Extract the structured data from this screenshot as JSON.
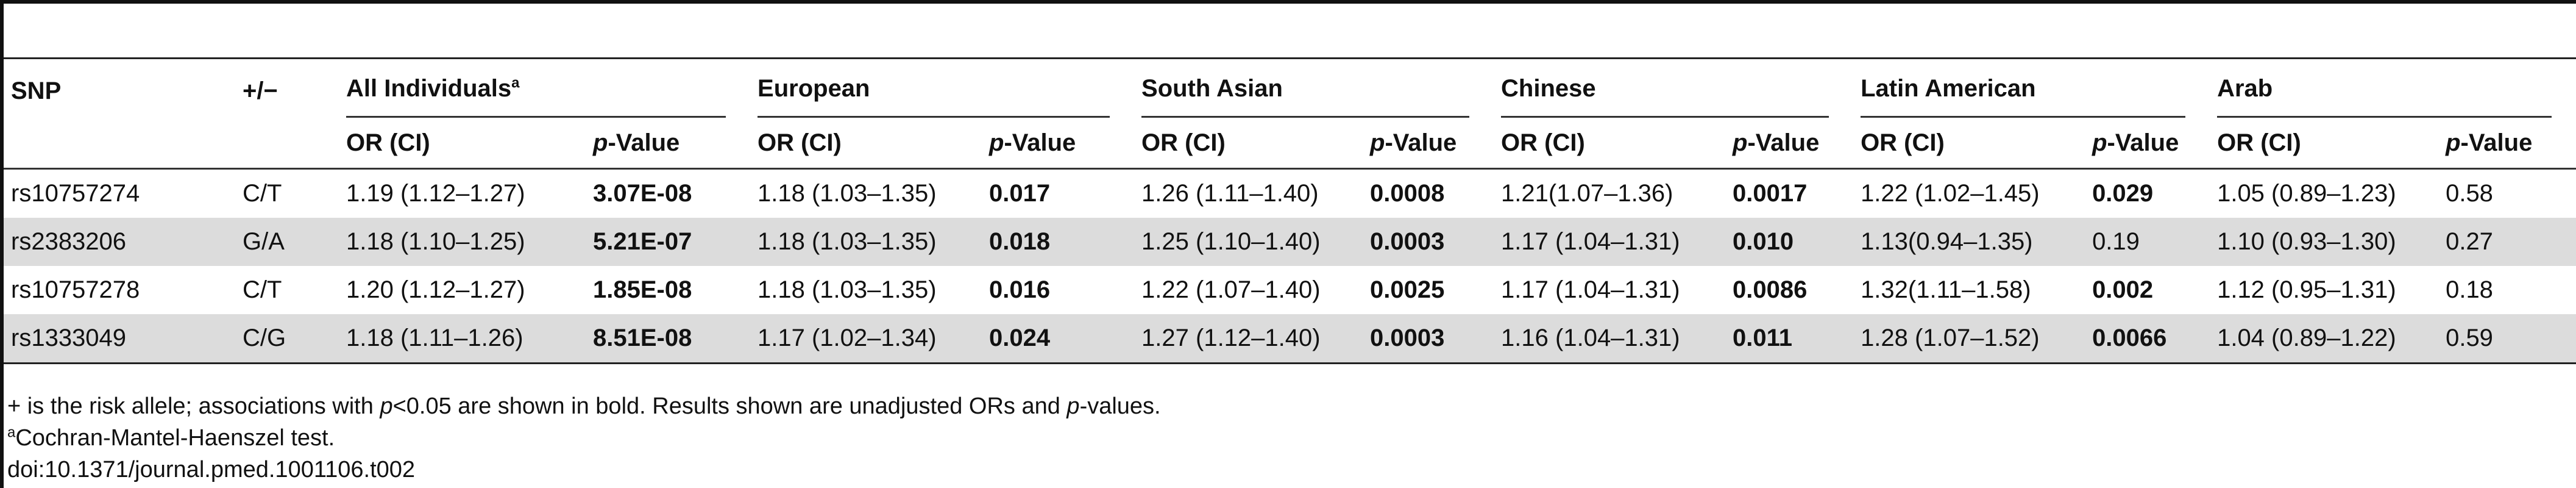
{
  "headers": {
    "snp": "SNP",
    "allele": "+/−",
    "groups": [
      "All Individuals",
      "European",
      "South Asian",
      "Chinese",
      "Latin American",
      "Arab"
    ],
    "all_sup": "a",
    "or_label": "OR (CI)",
    "p_prefix": "p",
    "p_suffix": "-Value"
  },
  "rows": [
    {
      "snp": "rs10757274",
      "allele": "C/T",
      "cells": [
        {
          "or": "1.19 (1.12–1.27)",
          "p": "3.07E-08"
        },
        {
          "or": "1.18 (1.03–1.35)",
          "p": "0.017"
        },
        {
          "or": "1.26 (1.11–1.40)",
          "p": "0.0008"
        },
        {
          "or": "1.21(1.07–1.36)",
          "p": "0.0017"
        },
        {
          "or": "1.22 (1.02–1.45)",
          "p": "0.029"
        },
        {
          "or": "1.05 (0.89–1.23)",
          "p": "0.58"
        }
      ]
    },
    {
      "snp": "rs2383206",
      "allele": "G/A",
      "cells": [
        {
          "or": "1.18 (1.10–1.25)",
          "p": "5.21E-07"
        },
        {
          "or": "1.18 (1.03–1.35)",
          "p": "0.018"
        },
        {
          "or": "1.25 (1.10–1.40)",
          "p": "0.0003"
        },
        {
          "or": "1.17 (1.04–1.31)",
          "p": "0.010"
        },
        {
          "or": "1.13(0.94–1.35)",
          "p": "0.19"
        },
        {
          "or": "1.10 (0.93–1.30)",
          "p": "0.27"
        }
      ]
    },
    {
      "snp": "rs10757278",
      "allele": "C/T",
      "cells": [
        {
          "or": "1.20 (1.12–1.27)",
          "p": "1.85E-08"
        },
        {
          "or": "1.18 (1.03–1.35)",
          "p": "0.016"
        },
        {
          "or": "1.22 (1.07–1.40)",
          "p": "0.0025"
        },
        {
          "or": "1.17 (1.04–1.31)",
          "p": "0.0086"
        },
        {
          "or": "1.32(1.11–1.58)",
          "p": "0.002"
        },
        {
          "or": "1.12 (0.95–1.31)",
          "p": "0.18"
        }
      ]
    },
    {
      "snp": "rs1333049",
      "allele": "C/G",
      "cells": [
        {
          "or": "1.18 (1.11–1.26)",
          "p": "8.51E-08"
        },
        {
          "or": "1.17 (1.02–1.34)",
          "p": "0.024"
        },
        {
          "or": "1.27 (1.12–1.40)",
          "p": "0.0003"
        },
        {
          "or": "1.16 (1.04–1.31)",
          "p": "0.011"
        },
        {
          "or": "1.28 (1.07–1.52)",
          "p": "0.0066"
        },
        {
          "or": "1.04 (0.89–1.22)",
          "p": "0.59"
        }
      ]
    }
  ],
  "footnotes": {
    "line1_a": "+ is the risk allele; associations with ",
    "line1_p": "p",
    "line1_b": "<0.05 are shown in bold. Results shown are unadjusted ORs and ",
    "line1_p2": "p",
    "line1_c": "-values.",
    "line2_sup": "a",
    "line2": "Cochran-Mantel-Haenszel test.",
    "doi": "doi:10.1371/journal.pmed.1001106.t002"
  }
}
